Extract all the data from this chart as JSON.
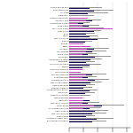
{
  "categories": [
    "STOXX Europe 600",
    "Basic Resources",
    "Oil & Gas",
    "Chemicals",
    "Construction & Mat.",
    "Industrial G&S",
    "Automobiles & Parts",
    "Food & Bev.",
    "Pers. & HH Goods",
    "Health Care",
    "Retail",
    "Media",
    "Travel & Leisure",
    "Telecom",
    "Utilities",
    "Banks",
    "Insurance",
    "Fin. Services",
    "Real Estate",
    "Technology",
    "Aerospace & Defense",
    "Beverages",
    "Clothing & Footwear",
    "Tobacco",
    "Household Products",
    "Leisure Goods",
    "Personal Products",
    "Food Producers",
    "Pharma & Biotech",
    "Medical Equipment",
    "General Retailers",
    "Specialty Retailers",
    "Broadcasting & Entmt.",
    "Publishing",
    "Fixed Line Telecom",
    "Mobile Telecom",
    "Electricity",
    "Gas, Water & Multi.",
    "Retail Banks",
    "Diversified Financials",
    "Life Insurance",
    "Non-life Insurance",
    "Equity REITs",
    "Software & Comp. Serv.",
    "Tech Hardware & Equip."
  ],
  "s1": [
    0.28,
    0.34,
    0.26,
    0.3,
    0.36,
    0.32,
    0.2,
    0.27,
    0.38,
    0.34,
    0.24,
    0.28,
    0.4,
    0.22,
    0.28,
    0.44,
    0.34,
    0.32,
    0.26,
    0.36,
    0.3,
    0.24,
    0.28,
    0.18,
    0.26,
    0.22,
    0.32,
    0.26,
    0.36,
    0.3,
    0.24,
    0.2,
    0.28,
    0.22,
    0.2,
    0.24,
    0.28,
    0.26,
    0.46,
    0.28,
    0.36,
    0.32,
    0.24,
    0.38,
    0.32
  ],
  "s2": [
    0.18,
    0.28,
    0.16,
    0.22,
    0.26,
    0.24,
    0.12,
    0.18,
    0.6,
    0.23,
    0.17,
    0.21,
    0.29,
    0.15,
    0.2,
    0.3,
    0.25,
    0.23,
    0.18,
    0.27,
    0.22,
    0.17,
    0.22,
    0.12,
    0.18,
    0.16,
    0.24,
    0.18,
    0.26,
    0.22,
    0.17,
    0.15,
    0.19,
    0.17,
    0.14,
    0.18,
    0.2,
    0.18,
    0.34,
    0.2,
    0.26,
    0.23,
    0.17,
    0.28,
    0.23
  ],
  "s3": [
    0.46,
    0.62,
    0.54,
    0.35,
    0.48,
    0.44,
    0.28,
    0.42,
    0.48,
    0.44,
    0.36,
    0.4,
    0.54,
    0.32,
    0.42,
    0.72,
    0.56,
    0.52,
    0.38,
    0.58,
    0.46,
    0.36,
    0.44,
    0.28,
    0.38,
    0.34,
    0.52,
    0.38,
    0.56,
    0.46,
    0.36,
    0.32,
    0.4,
    0.36,
    0.3,
    0.36,
    0.44,
    0.42,
    0.76,
    0.44,
    0.54,
    0.52,
    0.36,
    0.62,
    0.52
  ],
  "color1": "#1a0a5e",
  "color2": "#cc44cc",
  "color3": "#999999",
  "figsize": [
    1.5,
    1.5
  ],
  "dpi": 100,
  "xlim": [
    0,
    0.85
  ],
  "label_fontsize": 1.5,
  "tick_fontsize": 2.0
}
